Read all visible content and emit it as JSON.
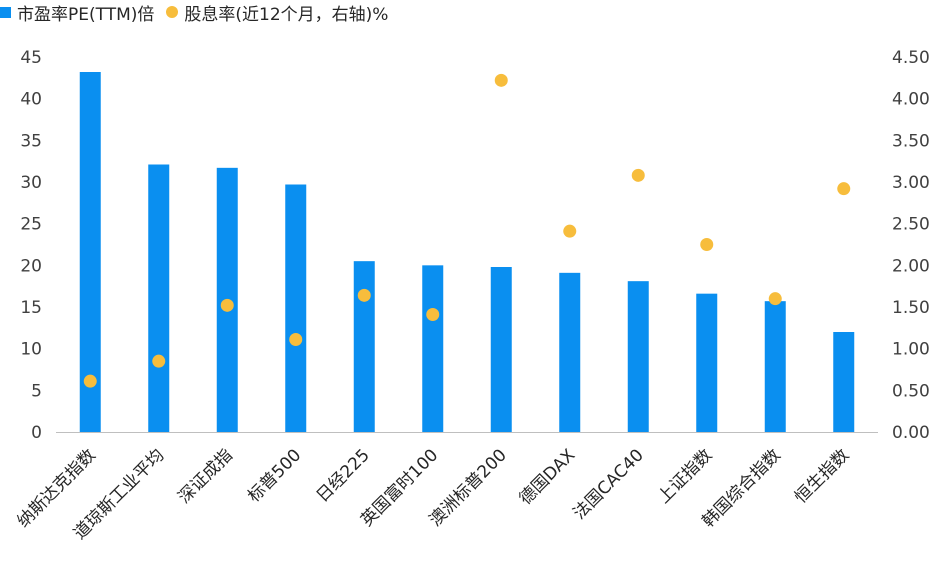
{
  "colors": {
    "bar": "#0a8ff0",
    "dot": "#f7bd3c",
    "axis": "#bfbfbf"
  },
  "chart_data": {
    "type": "bar",
    "title": "",
    "categories": [
      "纳斯达克指数",
      "道琼斯工业平均",
      "深证成指",
      "标普500",
      "日经225",
      "英国富时100",
      "澳洲标普200",
      "德国DAX",
      "法国CAC40",
      "上证指数",
      "韩国综合指数",
      "恒生指数"
    ],
    "series": [
      {
        "name": "市盈率PE(TTM)倍",
        "type": "bar",
        "axis": "left",
        "values": [
          43.2,
          32.1,
          31.7,
          29.7,
          20.5,
          20.0,
          19.8,
          19.1,
          18.1,
          16.6,
          15.7,
          12.0
        ]
      },
      {
        "name": "股息率(近12个月，右轴)%",
        "type": "scatter",
        "axis": "right",
        "values": [
          0.61,
          0.85,
          1.52,
          1.11,
          1.64,
          1.41,
          4.22,
          2.41,
          3.08,
          2.25,
          1.6,
          2.92
        ]
      }
    ],
    "y_left": {
      "ylim": [
        0,
        45
      ],
      "ticks": [
        "0",
        "5",
        "10",
        "15",
        "20",
        "25",
        "30",
        "35",
        "40",
        "45"
      ]
    },
    "y_right": {
      "ylim": [
        0,
        4.5
      ],
      "ticks": [
        "0.00",
        "0.50",
        "1.00",
        "1.50",
        "2.00",
        "2.50",
        "3.00",
        "3.50",
        "4.00",
        "4.50"
      ]
    },
    "grid": false,
    "legend_position": "top-left"
  }
}
